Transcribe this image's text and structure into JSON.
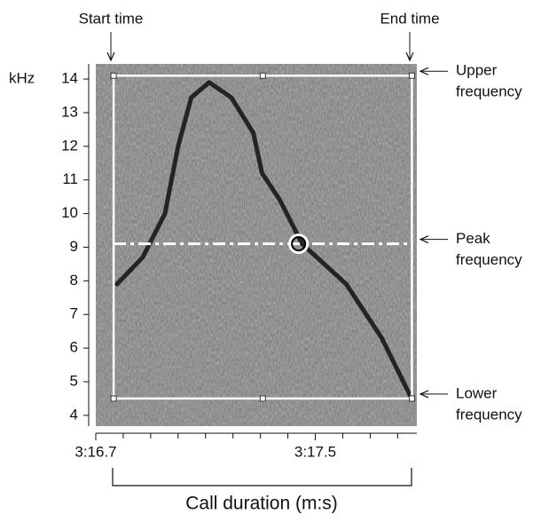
{
  "chart_data": {
    "type": "spectrogram",
    "y_label": "kHz",
    "x_label": "Call duration (m:s)",
    "xlim": [
      196.7,
      197.87
    ],
    "ylim": [
      3.68,
      14.45
    ],
    "yticks": [
      4,
      5,
      6,
      7,
      8,
      9,
      10,
      11,
      12,
      13,
      14
    ],
    "xticks": [
      {
        "value": 196.7,
        "label": "3:16.7"
      },
      {
        "value": 197.5,
        "label": "3:17.5"
      }
    ],
    "xminorticks": [
      196.8,
      196.9,
      197.0,
      197.1,
      197.2,
      197.3,
      197.4,
      197.6,
      197.7,
      197.8
    ],
    "contour": {
      "x": [
        196.777,
        196.871,
        196.952,
        197.0,
        197.048,
        197.113,
        197.194,
        197.274,
        197.306,
        197.371,
        197.452,
        197.613,
        197.742,
        197.845
      ],
      "values": [
        7.9,
        8.7,
        10.0,
        12.0,
        13.45,
        13.9,
        13.45,
        12.4,
        11.2,
        10.4,
        9.1,
        7.9,
        6.3,
        4.6
      ]
    },
    "selection": {
      "start_time": 196.765,
      "end_time": 197.852,
      "upper_freq": 14.1,
      "lower_freq": 4.5,
      "peak_freq": 9.1,
      "peak_time": 197.439
    },
    "annotations": {
      "start": "Start time",
      "end": "End time",
      "upper": [
        "Upper",
        "frequency"
      ],
      "peak": [
        "Peak",
        "frequency"
      ],
      "lower": [
        "Lower",
        "frequency"
      ]
    }
  }
}
